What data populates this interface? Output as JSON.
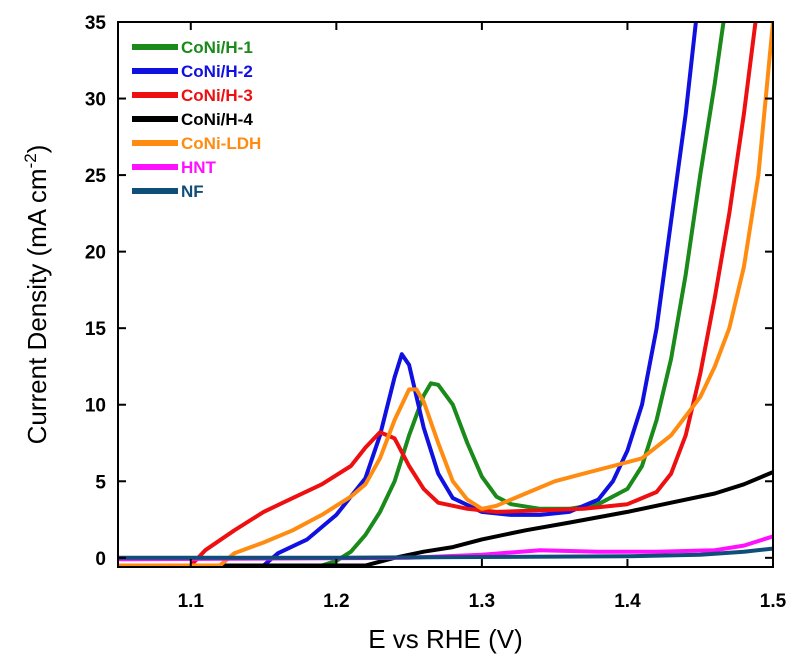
{
  "chart_data": {
    "type": "line",
    "title": "",
    "xlabel": "E vs RHE (V)",
    "ylabel_main": "Current Density (mA cm",
    "ylabel_sup": "-2",
    "ylabel_close": ")",
    "xlim": [
      1.05,
      1.5
    ],
    "ylim": [
      -0.6,
      35
    ],
    "xticks": [
      1.1,
      1.2,
      1.3,
      1.4,
      1.5
    ],
    "xtick_labels": [
      "1.1",
      "1.2",
      "1.3",
      "1.4",
      "1.5"
    ],
    "yticks": [
      0,
      5,
      10,
      15,
      20,
      25,
      30,
      35
    ],
    "ytick_labels": [
      "0",
      "5",
      "10",
      "15",
      "20",
      "25",
      "30",
      "35"
    ],
    "legend_position": "top-left",
    "series": [
      {
        "name": "CoNi/H-1",
        "color": "#1a8a1a",
        "points": [
          [
            1.05,
            -0.5
          ],
          [
            1.19,
            -0.5
          ],
          [
            1.2,
            -0.2
          ],
          [
            1.21,
            0.4
          ],
          [
            1.22,
            1.5
          ],
          [
            1.23,
            3.0
          ],
          [
            1.24,
            5.0
          ],
          [
            1.25,
            8.0
          ],
          [
            1.26,
            10.6
          ],
          [
            1.265,
            11.4
          ],
          [
            1.27,
            11.3
          ],
          [
            1.28,
            10.0
          ],
          [
            1.29,
            7.5
          ],
          [
            1.3,
            5.3
          ],
          [
            1.31,
            4.0
          ],
          [
            1.32,
            3.5
          ],
          [
            1.34,
            3.2
          ],
          [
            1.36,
            3.2
          ],
          [
            1.38,
            3.5
          ],
          [
            1.4,
            4.5
          ],
          [
            1.41,
            6.0
          ],
          [
            1.42,
            9.0
          ],
          [
            1.43,
            13.0
          ],
          [
            1.44,
            18.5
          ],
          [
            1.45,
            25.0
          ],
          [
            1.46,
            31.0
          ],
          [
            1.466,
            35.0
          ]
        ]
      },
      {
        "name": "CoNi/H-2",
        "color": "#1010e0",
        "points": [
          [
            1.05,
            -0.5
          ],
          [
            1.15,
            -0.5
          ],
          [
            1.16,
            0.3
          ],
          [
            1.18,
            1.2
          ],
          [
            1.2,
            2.8
          ],
          [
            1.22,
            5.2
          ],
          [
            1.23,
            8.0
          ],
          [
            1.24,
            11.8
          ],
          [
            1.245,
            13.3
          ],
          [
            1.25,
            12.6
          ],
          [
            1.26,
            8.5
          ],
          [
            1.27,
            5.5
          ],
          [
            1.28,
            3.9
          ],
          [
            1.3,
            3.0
          ],
          [
            1.32,
            2.8
          ],
          [
            1.34,
            2.8
          ],
          [
            1.36,
            3.0
          ],
          [
            1.38,
            3.8
          ],
          [
            1.39,
            5.0
          ],
          [
            1.4,
            7.0
          ],
          [
            1.41,
            10.0
          ],
          [
            1.42,
            15.0
          ],
          [
            1.43,
            22.0
          ],
          [
            1.44,
            29.0
          ],
          [
            1.447,
            35.0
          ]
        ]
      },
      {
        "name": "CoNi/H-3",
        "color": "#ee1010",
        "points": [
          [
            1.05,
            -0.5
          ],
          [
            1.1,
            -0.5
          ],
          [
            1.11,
            0.5
          ],
          [
            1.13,
            1.8
          ],
          [
            1.15,
            3.0
          ],
          [
            1.17,
            3.9
          ],
          [
            1.19,
            4.8
          ],
          [
            1.21,
            6.0
          ],
          [
            1.22,
            7.2
          ],
          [
            1.23,
            8.2
          ],
          [
            1.24,
            7.8
          ],
          [
            1.25,
            6.0
          ],
          [
            1.26,
            4.5
          ],
          [
            1.27,
            3.6
          ],
          [
            1.29,
            3.2
          ],
          [
            1.31,
            3.0
          ],
          [
            1.34,
            3.1
          ],
          [
            1.37,
            3.2
          ],
          [
            1.4,
            3.5
          ],
          [
            1.42,
            4.3
          ],
          [
            1.43,
            5.5
          ],
          [
            1.44,
            8.0
          ],
          [
            1.45,
            12.0
          ],
          [
            1.46,
            17.0
          ],
          [
            1.47,
            22.5
          ],
          [
            1.48,
            29.0
          ],
          [
            1.488,
            35.0
          ]
        ]
      },
      {
        "name": "CoNi/H-4",
        "color": "#000000",
        "points": [
          [
            1.05,
            -0.5
          ],
          [
            1.22,
            -0.5
          ],
          [
            1.24,
            0.0
          ],
          [
            1.26,
            0.4
          ],
          [
            1.28,
            0.7
          ],
          [
            1.3,
            1.2
          ],
          [
            1.33,
            1.8
          ],
          [
            1.36,
            2.3
          ],
          [
            1.4,
            3.0
          ],
          [
            1.43,
            3.6
          ],
          [
            1.46,
            4.2
          ],
          [
            1.48,
            4.8
          ],
          [
            1.5,
            5.6
          ]
        ]
      },
      {
        "name": "CoNi-LDH",
        "color": "#ff8c10",
        "points": [
          [
            1.05,
            -0.5
          ],
          [
            1.12,
            -0.5
          ],
          [
            1.13,
            0.3
          ],
          [
            1.15,
            1.0
          ],
          [
            1.17,
            1.8
          ],
          [
            1.19,
            2.8
          ],
          [
            1.21,
            4.0
          ],
          [
            1.22,
            4.8
          ],
          [
            1.23,
            6.5
          ],
          [
            1.24,
            9.0
          ],
          [
            1.25,
            11.0
          ],
          [
            1.255,
            11.0
          ],
          [
            1.26,
            10.2
          ],
          [
            1.27,
            7.5
          ],
          [
            1.28,
            5.0
          ],
          [
            1.29,
            3.8
          ],
          [
            1.3,
            3.2
          ],
          [
            1.31,
            3.4
          ],
          [
            1.33,
            4.2
          ],
          [
            1.35,
            5.0
          ],
          [
            1.37,
            5.5
          ],
          [
            1.39,
            6.0
          ],
          [
            1.41,
            6.5
          ],
          [
            1.43,
            8.0
          ],
          [
            1.45,
            10.5
          ],
          [
            1.46,
            12.5
          ],
          [
            1.47,
            15.0
          ],
          [
            1.48,
            19.0
          ],
          [
            1.49,
            25.0
          ],
          [
            1.5,
            35.0
          ]
        ]
      },
      {
        "name": "HNT",
        "color": "#ff10ff",
        "points": [
          [
            1.05,
            -0.1
          ],
          [
            1.25,
            0.0
          ],
          [
            1.3,
            0.2
          ],
          [
            1.34,
            0.5
          ],
          [
            1.38,
            0.4
          ],
          [
            1.42,
            0.4
          ],
          [
            1.46,
            0.5
          ],
          [
            1.48,
            0.8
          ],
          [
            1.5,
            1.4
          ]
        ]
      },
      {
        "name": "NF",
        "color": "#104e7a",
        "points": [
          [
            1.05,
            0.0
          ],
          [
            1.2,
            0.0
          ],
          [
            1.3,
            0.05
          ],
          [
            1.4,
            0.1
          ],
          [
            1.45,
            0.2
          ],
          [
            1.48,
            0.4
          ],
          [
            1.5,
            0.6
          ]
        ]
      }
    ]
  }
}
